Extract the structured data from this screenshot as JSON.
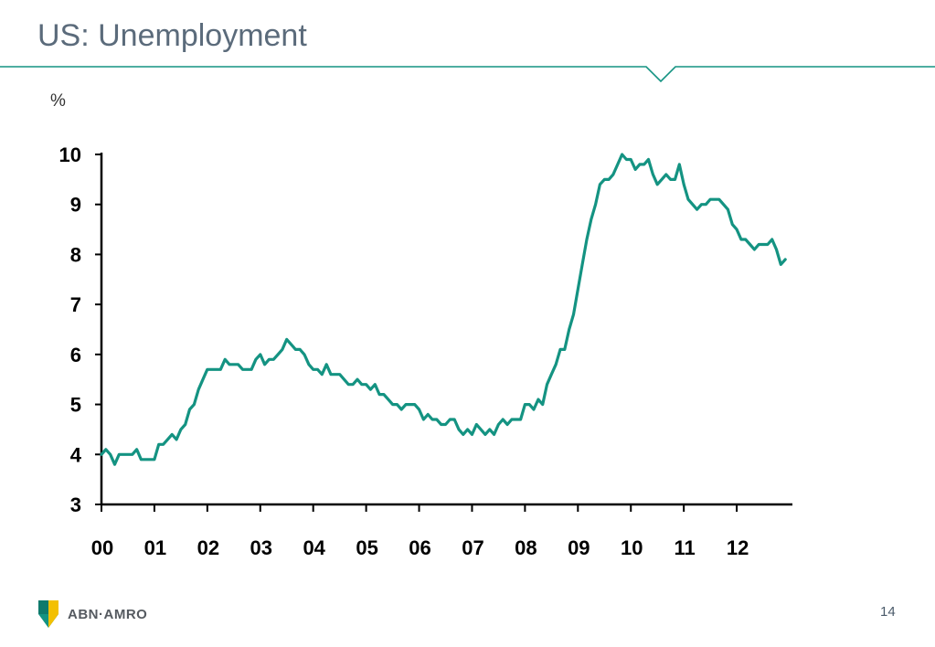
{
  "slide": {
    "title": "US: Unemployment",
    "page_number": "14",
    "logo_text": "ABN·AMRO",
    "accent_color": "#149382",
    "logo_icon": "abn-amro-shield-icon"
  },
  "chart_data": {
    "type": "line",
    "title": "",
    "xlabel": "",
    "ylabel": "%",
    "ylim": [
      3,
      10
    ],
    "yticks": [
      3,
      4,
      5,
      6,
      7,
      8,
      9,
      10
    ],
    "xticks": [
      "00",
      "01",
      "02",
      "03",
      "04",
      "05",
      "06",
      "07",
      "08",
      "09",
      "10",
      "11",
      "12"
    ],
    "x_range": [
      "2000-01",
      "2013-01"
    ],
    "legend": "none",
    "grid": false,
    "color": "#149382",
    "series": [
      {
        "frequency": "monthly",
        "start": "2000-01",
        "end": "2012-12",
        "values": [
          4.0,
          4.1,
          4.0,
          3.8,
          4.0,
          4.0,
          4.0,
          4.0,
          4.1,
          3.9,
          3.9,
          3.9,
          3.9,
          4.2,
          4.2,
          4.3,
          4.4,
          4.3,
          4.5,
          4.6,
          4.9,
          5.0,
          5.3,
          5.5,
          5.7,
          5.7,
          5.7,
          5.7,
          5.9,
          5.8,
          5.8,
          5.8,
          5.7,
          5.7,
          5.7,
          5.9,
          6.0,
          5.8,
          5.9,
          5.9,
          6.0,
          6.1,
          6.3,
          6.2,
          6.1,
          6.1,
          6.0,
          5.8,
          5.7,
          5.7,
          5.6,
          5.8,
          5.6,
          5.6,
          5.6,
          5.5,
          5.4,
          5.4,
          5.5,
          5.4,
          5.4,
          5.3,
          5.4,
          5.2,
          5.2,
          5.1,
          5.0,
          5.0,
          4.9,
          5.0,
          5.0,
          5.0,
          4.9,
          4.7,
          4.8,
          4.7,
          4.7,
          4.6,
          4.6,
          4.7,
          4.7,
          4.5,
          4.4,
          4.5,
          4.4,
          4.6,
          4.5,
          4.4,
          4.5,
          4.4,
          4.6,
          4.7,
          4.6,
          4.7,
          4.7,
          4.7,
          5.0,
          5.0,
          4.9,
          5.1,
          5.0,
          5.4,
          5.6,
          5.8,
          6.1,
          6.1,
          6.5,
          6.8,
          7.3,
          7.8,
          8.3,
          8.7,
          9.0,
          9.4,
          9.5,
          9.5,
          9.6,
          9.8,
          10.0,
          9.9,
          9.9,
          9.7,
          9.8,
          9.8,
          9.9,
          9.6,
          9.4,
          9.5,
          9.6,
          9.5,
          9.5,
          9.8,
          9.4,
          9.1,
          9.0,
          8.9,
          9.0,
          9.0,
          9.1,
          9.1,
          9.1,
          9.0,
          8.9,
          8.6,
          8.5,
          8.3,
          8.3,
          8.2,
          8.1,
          8.2,
          8.2,
          8.2,
          8.3,
          8.1,
          7.8,
          7.9
        ]
      }
    ]
  }
}
